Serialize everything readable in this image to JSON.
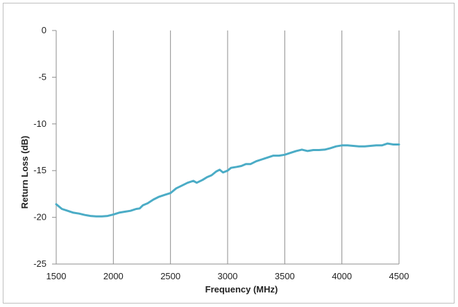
{
  "chart_data": {
    "type": "line",
    "title": "",
    "xlabel": "Frequency (MHz)",
    "ylabel": "Return Loss (dB)",
    "xlim": [
      1500,
      4500
    ],
    "ylim": [
      -25,
      0
    ],
    "x_ticks": [
      1500,
      2000,
      2500,
      3000,
      3500,
      4000,
      4500
    ],
    "y_ticks": [
      0,
      -5,
      -10,
      -15,
      -20,
      -25
    ],
    "grid": "vertical",
    "legend": "none",
    "series": [
      {
        "color": "#4bacc6",
        "points": [
          [
            1500,
            -18.6
          ],
          [
            1550,
            -19.1
          ],
          [
            1600,
            -19.3
          ],
          [
            1650,
            -19.5
          ],
          [
            1700,
            -19.6
          ],
          [
            1750,
            -19.75
          ],
          [
            1800,
            -19.85
          ],
          [
            1850,
            -19.9
          ],
          [
            1900,
            -19.9
          ],
          [
            1950,
            -19.85
          ],
          [
            2000,
            -19.7
          ],
          [
            2050,
            -19.5
          ],
          [
            2100,
            -19.4
          ],
          [
            2150,
            -19.3
          ],
          [
            2200,
            -19.1
          ],
          [
            2230,
            -19.05
          ],
          [
            2260,
            -18.7
          ],
          [
            2300,
            -18.5
          ],
          [
            2350,
            -18.1
          ],
          [
            2400,
            -17.8
          ],
          [
            2450,
            -17.6
          ],
          [
            2500,
            -17.4
          ],
          [
            2550,
            -16.9
          ],
          [
            2600,
            -16.6
          ],
          [
            2650,
            -16.3
          ],
          [
            2700,
            -16.1
          ],
          [
            2730,
            -16.3
          ],
          [
            2780,
            -16.0
          ],
          [
            2820,
            -15.7
          ],
          [
            2860,
            -15.5
          ],
          [
            2900,
            -15.1
          ],
          [
            2930,
            -14.9
          ],
          [
            2960,
            -15.2
          ],
          [
            3000,
            -15.0
          ],
          [
            3030,
            -14.7
          ],
          [
            3080,
            -14.6
          ],
          [
            3120,
            -14.5
          ],
          [
            3160,
            -14.3
          ],
          [
            3200,
            -14.3
          ],
          [
            3250,
            -14.0
          ],
          [
            3300,
            -13.8
          ],
          [
            3350,
            -13.6
          ],
          [
            3400,
            -13.4
          ],
          [
            3450,
            -13.4
          ],
          [
            3500,
            -13.3
          ],
          [
            3550,
            -13.1
          ],
          [
            3600,
            -12.9
          ],
          [
            3650,
            -12.75
          ],
          [
            3700,
            -12.9
          ],
          [
            3750,
            -12.8
          ],
          [
            3800,
            -12.8
          ],
          [
            3850,
            -12.75
          ],
          [
            3900,
            -12.6
          ],
          [
            3950,
            -12.4
          ],
          [
            4000,
            -12.3
          ],
          [
            4050,
            -12.3
          ],
          [
            4100,
            -12.35
          ],
          [
            4150,
            -12.4
          ],
          [
            4200,
            -12.4
          ],
          [
            4250,
            -12.35
          ],
          [
            4300,
            -12.3
          ],
          [
            4350,
            -12.3
          ],
          [
            4400,
            -12.1
          ],
          [
            4450,
            -12.2
          ],
          [
            4500,
            -12.2
          ]
        ]
      }
    ]
  }
}
